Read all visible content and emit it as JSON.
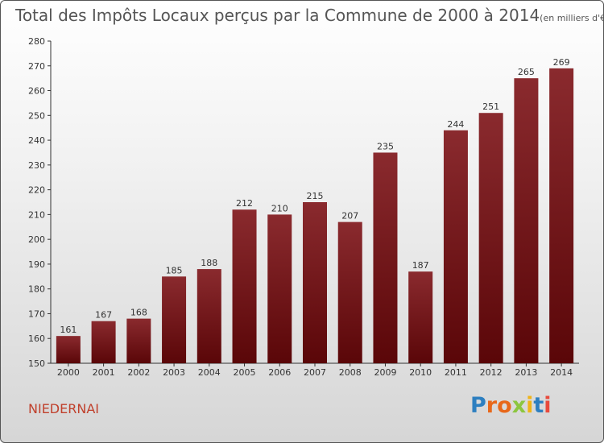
{
  "header": {
    "title": "Total des Impôts Locaux perçus par la Commune de 2000 à 2014",
    "unit": "(en milliers d'€)"
  },
  "commune": "NIEDERNAI",
  "logo": {
    "text": "Proxiti",
    "letter_colors": [
      "#2d7fc0",
      "#e8681a",
      "#e8681a",
      "#8cc63f",
      "#f0b418",
      "#2d7fc0",
      "#e84a3c"
    ]
  },
  "chart_data": {
    "type": "bar",
    "categories": [
      "2000",
      "2001",
      "2002",
      "2003",
      "2004",
      "2005",
      "2006",
      "2007",
      "2008",
      "2009",
      "2010",
      "2011",
      "2012",
      "2013",
      "2014"
    ],
    "values": [
      161,
      167,
      168,
      185,
      188,
      212,
      210,
      215,
      207,
      235,
      187,
      244,
      251,
      265,
      269
    ],
    "ylim": [
      150,
      280
    ],
    "yticks": [
      150,
      160,
      170,
      180,
      190,
      200,
      210,
      220,
      230,
      240,
      250,
      260,
      270,
      280
    ],
    "bar_color": "#7a1a1e",
    "grid": false
  }
}
